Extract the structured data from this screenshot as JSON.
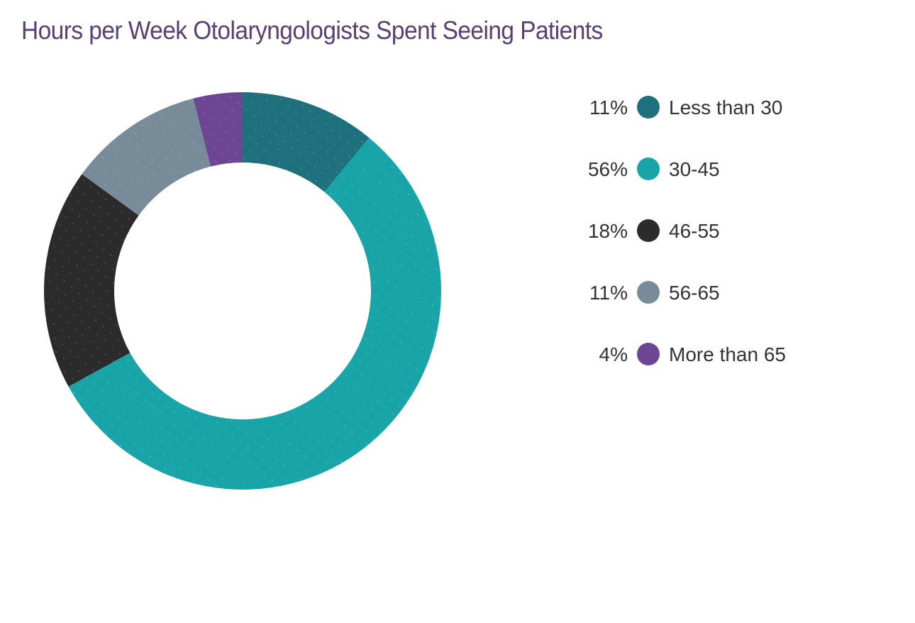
{
  "chart_data": {
    "type": "pie",
    "variant": "donut",
    "title": "Hours per Week Otolaryngologists Spent Seeing Patients",
    "categories": [
      "Less than 30",
      "30-45",
      "46-55",
      "56-65",
      "More than 65"
    ],
    "values": [
      11,
      56,
      18,
      11,
      4
    ],
    "value_labels": [
      "11%",
      "56%",
      "18%",
      "11%",
      "4%"
    ],
    "colors": [
      "#1e717c",
      "#19a4a8",
      "#2b2b2b",
      "#778c98",
      "#6c4593"
    ],
    "legend_placement": "right"
  },
  "colors": {
    "title": "#5a3f73",
    "legend_text": "#333333",
    "background": "#ffffff"
  }
}
